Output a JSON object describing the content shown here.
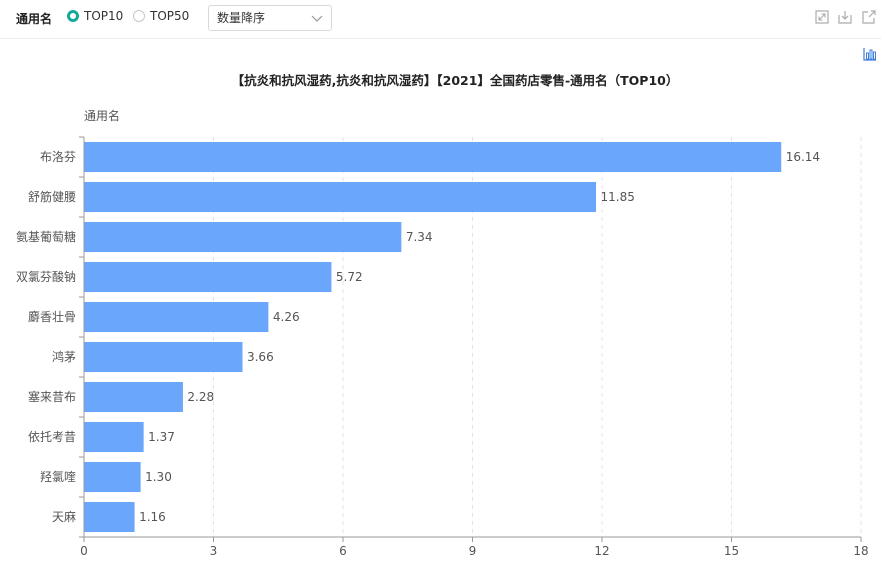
{
  "toolbar": {
    "label": "通用名",
    "options": [
      {
        "label": "TOP10",
        "selected": true
      },
      {
        "label": "TOP50",
        "selected": false
      }
    ],
    "sort_select": "数量降序",
    "icons": [
      "fullscreen-icon",
      "download-icon",
      "export-icon",
      "chart-type-icon"
    ],
    "accent_color": "#17a99a"
  },
  "chart_data": {
    "type": "bar",
    "orientation": "horizontal",
    "title": "【抗炎和抗风湿药,抗炎和抗风湿药】【2021】全国药店零售-通用名（TOP10）",
    "ylabel": "通用名",
    "xlabel": "",
    "categories": [
      "布洛芬",
      "舒筋健腰",
      "氨基葡萄糖",
      "双氯芬酸钠",
      "麝香壮骨",
      "鸿茅",
      "塞来昔布",
      "依托考昔",
      "羟氯喹",
      "天麻"
    ],
    "values": [
      16.14,
      11.85,
      7.34,
      5.72,
      4.26,
      3.66,
      2.28,
      1.37,
      1.3,
      1.16
    ],
    "value_labels": [
      "16.14",
      "11.85",
      "7.34",
      "5.72",
      "4.26",
      "3.66",
      "2.28",
      "1.37",
      "1.30",
      "1.16"
    ],
    "xlim": [
      0,
      18
    ],
    "xticks": [
      "0",
      "3",
      "6",
      "9",
      "12",
      "15",
      "18"
    ],
    "grid": "vertical dashed",
    "bar_color": "#6aa6fb"
  }
}
